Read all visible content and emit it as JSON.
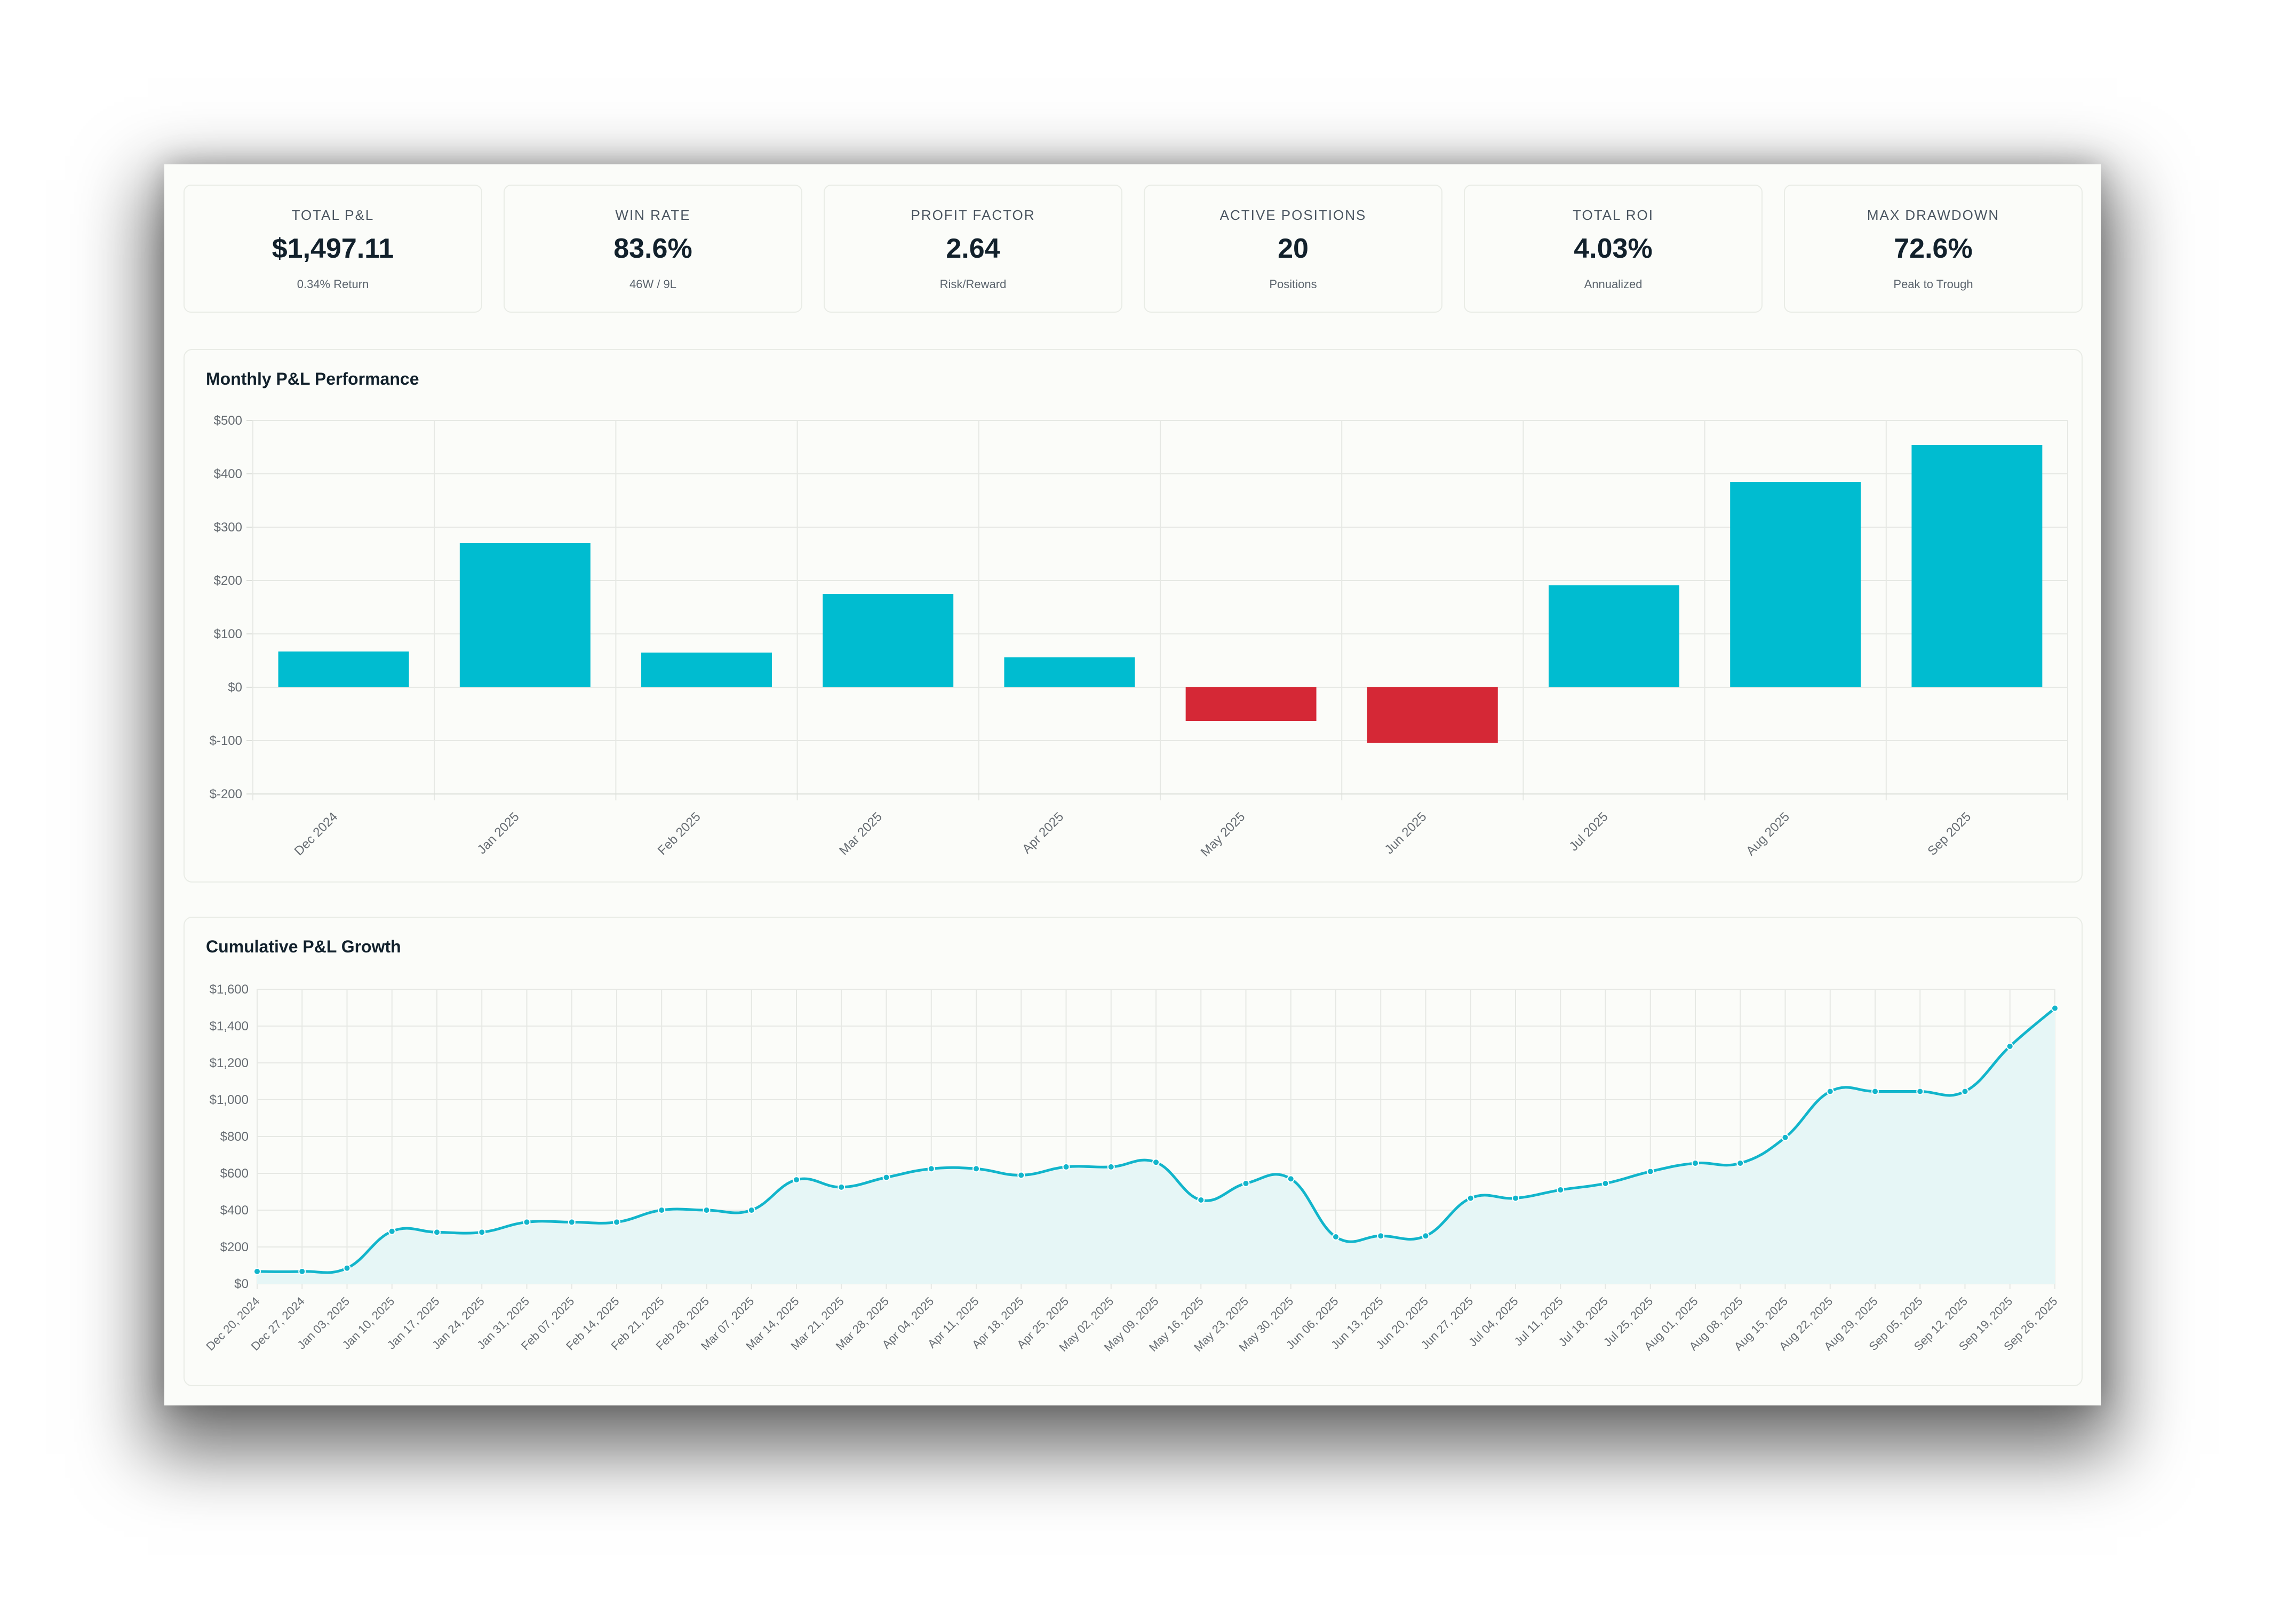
{
  "kpis": [
    {
      "label": "TOTAL P&L",
      "value": "$1,497.11",
      "sub": "0.34% Return"
    },
    {
      "label": "WIN RATE",
      "value": "83.6%",
      "sub": "46W / 9L"
    },
    {
      "label": "PROFIT FACTOR",
      "value": "2.64",
      "sub": "Risk/Reward"
    },
    {
      "label": "ACTIVE POSITIONS",
      "value": "20",
      "sub": "Positions"
    },
    {
      "label": "TOTAL ROI",
      "value": "4.03%",
      "sub": "Annualized"
    },
    {
      "label": "MAX DRAWDOWN",
      "value": "72.6%",
      "sub": "Peak to Trough"
    }
  ],
  "colors": {
    "positive": "#00bcd0",
    "negative": "#d52836",
    "line": "#12b5cb",
    "area": "#e6f6f6"
  },
  "chart_data": [
    {
      "type": "bar",
      "title": "Monthly P&L Performance",
      "categories": [
        "Dec 2024",
        "Jan 2025",
        "Feb 2025",
        "Mar 2025",
        "Apr 2025",
        "May 2025",
        "Jun 2025",
        "Jul 2025",
        "Aug 2025",
        "Sep 2025"
      ],
      "values": [
        67,
        270,
        65,
        175,
        56,
        -63,
        -104,
        191,
        385,
        454
      ],
      "ylim": [
        -200,
        500
      ],
      "yticks": [
        "$500",
        "$400",
        "$300",
        "$200",
        "$100",
        "$0",
        "$-100",
        "$-200"
      ],
      "ytick_values": [
        500,
        400,
        300,
        200,
        100,
        0,
        -100,
        -200
      ],
      "xlabel": "",
      "ylabel": "",
      "grid": true
    },
    {
      "type": "area",
      "title": "Cumulative P&L Growth",
      "x": [
        "Dec 20, 2024",
        "Dec 27, 2024",
        "Jan 03, 2025",
        "Jan 10, 2025",
        "Jan 17, 2025",
        "Jan 24, 2025",
        "Jan 31, 2025",
        "Feb 07, 2025",
        "Feb 14, 2025",
        "Feb 21, 2025",
        "Feb 28, 2025",
        "Mar 07, 2025",
        "Mar 14, 2025",
        "Mar 21, 2025",
        "Mar 28, 2025",
        "Apr 04, 2025",
        "Apr 11, 2025",
        "Apr 18, 2025",
        "Apr 25, 2025",
        "May 02, 2025",
        "May 09, 2025",
        "May 16, 2025",
        "May 23, 2025",
        "May 30, 2025",
        "Jun 06, 2025",
        "Jun 13, 2025",
        "Jun 20, 2025",
        "Jun 27, 2025",
        "Jul 04, 2025",
        "Jul 11, 2025",
        "Jul 18, 2025",
        "Jul 25, 2025",
        "Aug 01, 2025",
        "Aug 08, 2025",
        "Aug 15, 2025",
        "Aug 22, 2025",
        "Aug 29, 2025",
        "Sep 05, 2025",
        "Sep 12, 2025",
        "Sep 19, 2025",
        "Sep 26, 2025"
      ],
      "values": [
        67,
        67,
        85,
        285,
        280,
        280,
        335,
        335,
        335,
        400,
        400,
        400,
        565,
        525,
        578,
        625,
        625,
        590,
        635,
        635,
        660,
        455,
        545,
        570,
        255,
        260,
        260,
        465,
        465,
        510,
        545,
        610,
        655,
        655,
        795,
        1045,
        1045,
        1045,
        1045,
        1290,
        1497
      ],
      "ylim": [
        0,
        1600
      ],
      "yticks": [
        "$1,600",
        "$1,400",
        "$1,200",
        "$1,000",
        "$800",
        "$600",
        "$400",
        "$200",
        "$0"
      ],
      "ytick_values": [
        1600,
        1400,
        1200,
        1000,
        800,
        600,
        400,
        200,
        0
      ],
      "xlabel": "",
      "ylabel": "",
      "grid": true
    }
  ]
}
